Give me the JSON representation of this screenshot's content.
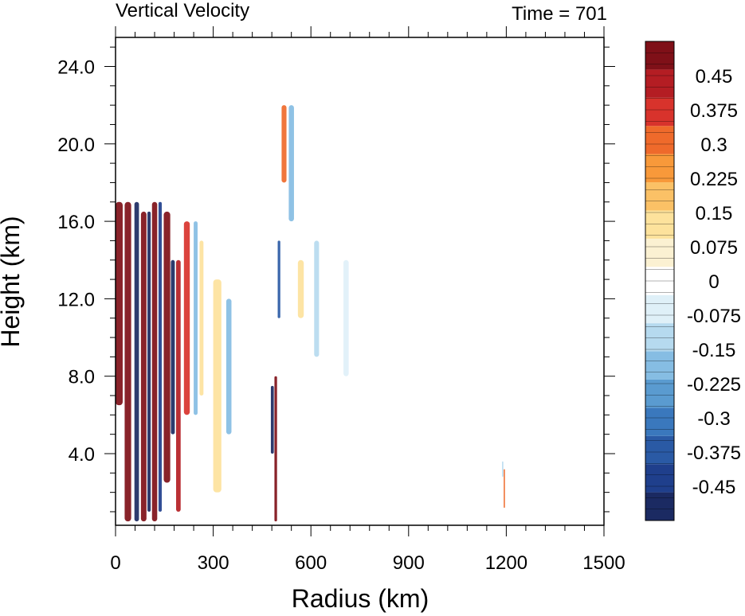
{
  "chart_data": {
    "type": "heatmap",
    "title": "Vertical Velocity",
    "subtitle": "Time = 701",
    "xlabel": "Radius (km)",
    "ylabel": "Height (km)",
    "xlim": [
      0,
      1500
    ],
    "ylim": [
      0.3,
      25.5
    ],
    "x_ticks": [
      "0",
      "300",
      "600",
      "900",
      "1200",
      "1500"
    ],
    "x_tick_values": [
      0,
      300,
      600,
      900,
      1200,
      1500
    ],
    "y_ticks": [
      "4.0",
      "8.0",
      "12.0",
      "16.0",
      "20.0",
      "24.0"
    ],
    "y_tick_values": [
      4,
      8,
      12,
      16,
      20,
      24
    ],
    "colorbar": {
      "range": [
        -0.525,
        0.525
      ],
      "step": 0.025,
      "labels": [
        "0.45",
        "0.375",
        "0.3",
        "0.225",
        "0.15",
        "0.075",
        "0",
        "-0.075",
        "-0.15",
        "-0.225",
        "-0.3",
        "-0.375",
        "-0.45"
      ],
      "label_values": [
        0.45,
        0.375,
        0.3,
        0.225,
        0.15,
        0.075,
        0,
        -0.075,
        -0.15,
        -0.225,
        -0.3,
        -0.375,
        -0.45
      ],
      "colors": [
        "#1b2a62",
        "#1f3f8c",
        "#2a5aa5",
        "#3a78bd",
        "#5a9bd0",
        "#86bde3",
        "#b6daef",
        "#dff0f8",
        "#ffffff",
        "#fbf1d2",
        "#fde29c",
        "#fbc166",
        "#f8993a",
        "#ef6a2b",
        "#d8332c",
        "#b41d23",
        "#7f1018"
      ]
    },
    "features": [
      {
        "r": [
          0,
          22
        ],
        "z": [
          6.5,
          17
        ],
        "w": 0.5
      },
      {
        "r": [
          28,
          48
        ],
        "z": [
          0.5,
          17
        ],
        "w": 0.5
      },
      {
        "r": [
          58,
          72
        ],
        "z": [
          0.5,
          17
        ],
        "w": -0.5
      },
      {
        "r": [
          78,
          95
        ],
        "z": [
          0.5,
          16.5
        ],
        "w": 0.5
      },
      {
        "r": [
          98,
          108
        ],
        "z": [
          1,
          16.5
        ],
        "w": -0.5
      },
      {
        "r": [
          112,
          128
        ],
        "z": [
          0.5,
          17
        ],
        "w": 0.5
      },
      {
        "r": [
          132,
          142
        ],
        "z": [
          1,
          17
        ],
        "w": -0.45
      },
      {
        "r": [
          148,
          168
        ],
        "z": [
          2.5,
          16.5
        ],
        "w": 0.5
      },
      {
        "r": [
          170,
          182
        ],
        "z": [
          5,
          14
        ],
        "w": -0.5
      },
      {
        "r": [
          186,
          200
        ],
        "z": [
          1,
          14
        ],
        "w": 0.45
      },
      {
        "r": [
          210,
          228
        ],
        "z": [
          6,
          16
        ],
        "w": 0.35
      },
      {
        "r": [
          240,
          252
        ],
        "z": [
          6,
          16
        ],
        "w": -0.2
      },
      {
        "r": [
          258,
          270
        ],
        "z": [
          7,
          15
        ],
        "w": 0.15
      },
      {
        "r": [
          300,
          325
        ],
        "z": [
          2,
          13
        ],
        "w": 0.1
      },
      {
        "r": [
          340,
          356
        ],
        "z": [
          5,
          12
        ],
        "w": -0.2
      },
      {
        "r": [
          488,
          496
        ],
        "z": [
          0.5,
          8
        ],
        "w": 0.5
      },
      {
        "r": [
          477,
          486
        ],
        "z": [
          4,
          7.5
        ],
        "w": -0.5
      },
      {
        "r": [
          498,
          506
        ],
        "z": [
          11,
          15
        ],
        "w": -0.35
      },
      {
        "r": [
          510,
          525
        ],
        "z": [
          18,
          22
        ],
        "w": 0.3
      },
      {
        "r": [
          532,
          548
        ],
        "z": [
          16,
          22
        ],
        "w": -0.2
      },
      {
        "r": [
          560,
          578
        ],
        "z": [
          11,
          14
        ],
        "w": 0.1
      },
      {
        "r": [
          610,
          625
        ],
        "z": [
          9,
          15
        ],
        "w": -0.1
      },
      {
        "r": [
          700,
          716
        ],
        "z": [
          8,
          14
        ],
        "w": -0.05
      },
      {
        "r": [
          1192,
          1196
        ],
        "z": [
          1.2,
          3.2
        ],
        "w": 0.3
      },
      {
        "r": [
          1187,
          1191
        ],
        "z": [
          2.8,
          3.6
        ],
        "w": -0.1
      }
    ]
  }
}
